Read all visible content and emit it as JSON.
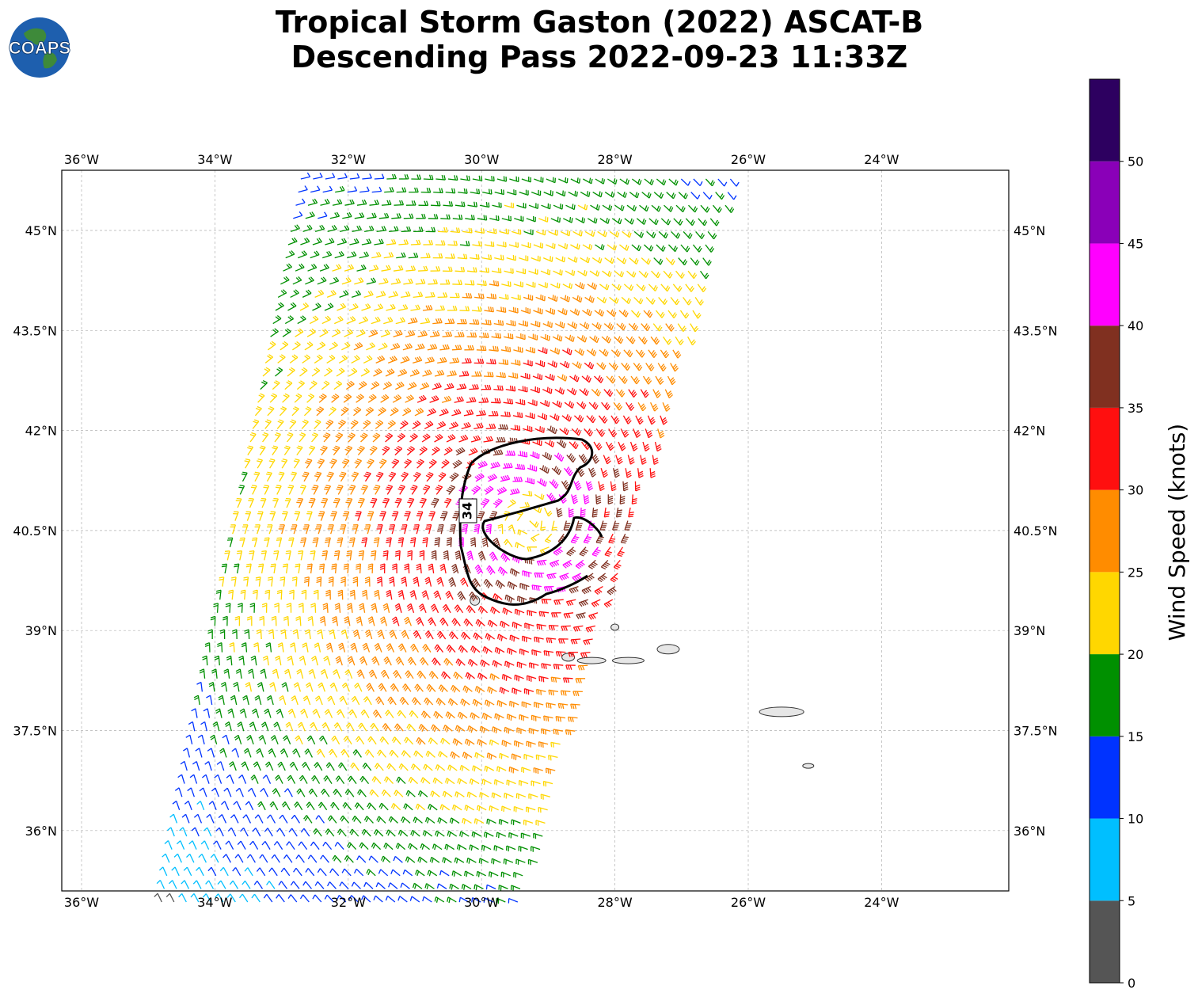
{
  "header": {
    "title_line1": "Tropical Storm Gaston (2022) ASCAT-B",
    "title_line2": "Descending Pass 2022-09-23 11:33Z"
  },
  "logo": {
    "text": "COAPS",
    "icon": "globe-icon"
  },
  "map": {
    "lon_ticks": [
      {
        "value": -36,
        "label": "36°W"
      },
      {
        "value": -34,
        "label": "34°W"
      },
      {
        "value": -32,
        "label": "32°W"
      },
      {
        "value": -30,
        "label": "30°W"
      },
      {
        "value": -28,
        "label": "28°W"
      },
      {
        "value": -26,
        "label": "26°W"
      },
      {
        "value": -24,
        "label": "24°W"
      }
    ],
    "lat_ticks": [
      {
        "value": 45,
        "label": "45°N"
      },
      {
        "value": 43.5,
        "label": "43.5°N"
      },
      {
        "value": 42,
        "label": "42°N"
      },
      {
        "value": 40.5,
        "label": "40.5°N"
      },
      {
        "value": 39,
        "label": "39°N"
      },
      {
        "value": 37.5,
        "label": "37.5°N"
      },
      {
        "value": 36,
        "label": "36°N"
      }
    ],
    "lon_range": [
      -36.3,
      -22.1
    ],
    "lat_range": [
      35.1,
      45.9
    ],
    "gridlines": true,
    "contour_label": "34",
    "storm_center": {
      "lon": -29.3,
      "lat": 40.6
    },
    "islands": [
      {
        "lon": -30.1,
        "lat": 39.45
      },
      {
        "lon": -28.0,
        "lat": 39.05
      },
      {
        "lon": -28.7,
        "lat": 38.6
      },
      {
        "lon": -28.35,
        "lat": 38.55
      },
      {
        "lon": -27.8,
        "lat": 38.55
      },
      {
        "lon": -27.2,
        "lat": 38.72
      },
      {
        "lon": -25.5,
        "lat": 37.78
      },
      {
        "lon": -25.1,
        "lat": 36.97
      }
    ]
  },
  "colorbar": {
    "title": "Wind Speed (knots)",
    "ticks": [
      "0",
      "5",
      "10",
      "15",
      "20",
      "25",
      "30",
      "35",
      "40",
      "45",
      "50"
    ],
    "colors": [
      "#555555",
      "#00bfff",
      "#0033ff",
      "#009000",
      "#ffd700",
      "#ff8c00",
      "#ff0f0f",
      "#803020",
      "#ff00ff",
      "#8a00b8",
      "#2d0060"
    ],
    "max": 55
  }
}
